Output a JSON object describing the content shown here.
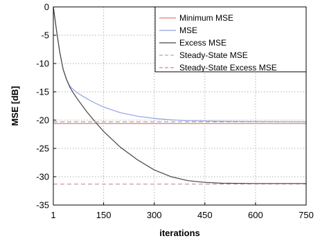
{
  "chart_data": {
    "type": "line",
    "title": "",
    "xlabel": "iterations",
    "ylabel": "MSE [dB]",
    "xlim": [
      1,
      750
    ],
    "ylim": [
      -35,
      0
    ],
    "xticks": [
      1,
      150,
      300,
      450,
      600,
      750
    ],
    "yticks": [
      0,
      -5,
      -10,
      -15,
      -20,
      -25,
      -30,
      -35
    ],
    "xtick_labels": [
      "1",
      "150",
      "300",
      "450",
      "600",
      "750"
    ],
    "ytick_labels": [
      "0",
      "-5",
      "-10",
      "-15",
      "-20",
      "-25",
      "-30",
      "-35"
    ],
    "grid": true,
    "legend_position": "top-right",
    "series": [
      {
        "name": "Minimum MSE",
        "color": "#e8787a",
        "style": "solid",
        "x": [
          1,
          750
        ],
        "y": [
          -20.6,
          -20.6
        ]
      },
      {
        "name": "MSE",
        "color": "#8ea2e2",
        "style": "solid",
        "x": [
          1,
          10,
          20,
          30,
          40,
          50,
          60,
          75,
          100,
          125,
          150,
          200,
          250,
          300,
          350,
          400,
          450,
          500,
          600,
          700,
          750
        ],
        "y": [
          0,
          -4,
          -8,
          -11,
          -12.8,
          -14,
          -14.6,
          -15.3,
          -16.2,
          -17,
          -17.7,
          -18.7,
          -19.3,
          -19.7,
          -19.95,
          -20.1,
          -20.15,
          -20.2,
          -20.25,
          -20.28,
          -20.3
        ]
      },
      {
        "name": "Excess MSE",
        "color": "#444444",
        "style": "solid",
        "x": [
          1,
          10,
          20,
          30,
          40,
          50,
          60,
          75,
          100,
          125,
          150,
          200,
          250,
          300,
          350,
          400,
          450,
          500,
          600,
          700,
          750
        ],
        "y": [
          0,
          -4,
          -8,
          -11,
          -12.8,
          -14.2,
          -15.2,
          -16.5,
          -18.5,
          -20.3,
          -22,
          -24.8,
          -27,
          -28.8,
          -30,
          -30.7,
          -31.0,
          -31.15,
          -31.2,
          -31.2,
          -31.2
        ]
      },
      {
        "name": "Steady-State MSE",
        "color": "#aaaaaa",
        "style": "dashed",
        "x": [
          1,
          750
        ],
        "y": [
          -20.3,
          -20.3
        ]
      },
      {
        "name": "Steady-State Excess MSE",
        "color": "#c98a8a",
        "style": "dashed",
        "x": [
          1,
          750
        ],
        "y": [
          -31.3,
          -31.3
        ]
      }
    ]
  }
}
